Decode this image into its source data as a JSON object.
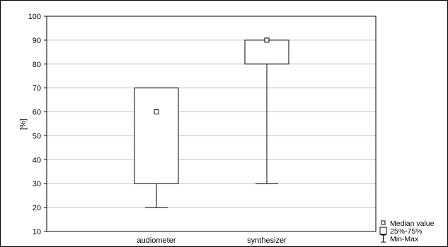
{
  "chart_data": {
    "type": "boxplot",
    "title": "",
    "xlabel": "",
    "ylabel": "[%]",
    "ylim": [
      10,
      100
    ],
    "yticks": [
      10,
      20,
      30,
      40,
      50,
      60,
      70,
      80,
      90,
      100
    ],
    "grid": true,
    "categories": [
      "audiometer",
      "synthesizer"
    ],
    "boxes": [
      {
        "category": "audiometer",
        "min": 20,
        "q1": 30,
        "median": 60,
        "q3": 70,
        "max": 70
      },
      {
        "category": "synthesizer",
        "min": 30,
        "q1": 80,
        "median": 90,
        "q3": 90,
        "max": 90
      }
    ],
    "legend": {
      "position": "bottom-right",
      "items": [
        {
          "symbol": "square-marker",
          "label": "Median value"
        },
        {
          "symbol": "box",
          "label": "25%-75%"
        },
        {
          "symbol": "whisker",
          "label": "Min-Max"
        }
      ]
    },
    "colors": {
      "line": "#000000",
      "grid": "#c0c0c0",
      "box_fill": "#ffffff"
    }
  }
}
